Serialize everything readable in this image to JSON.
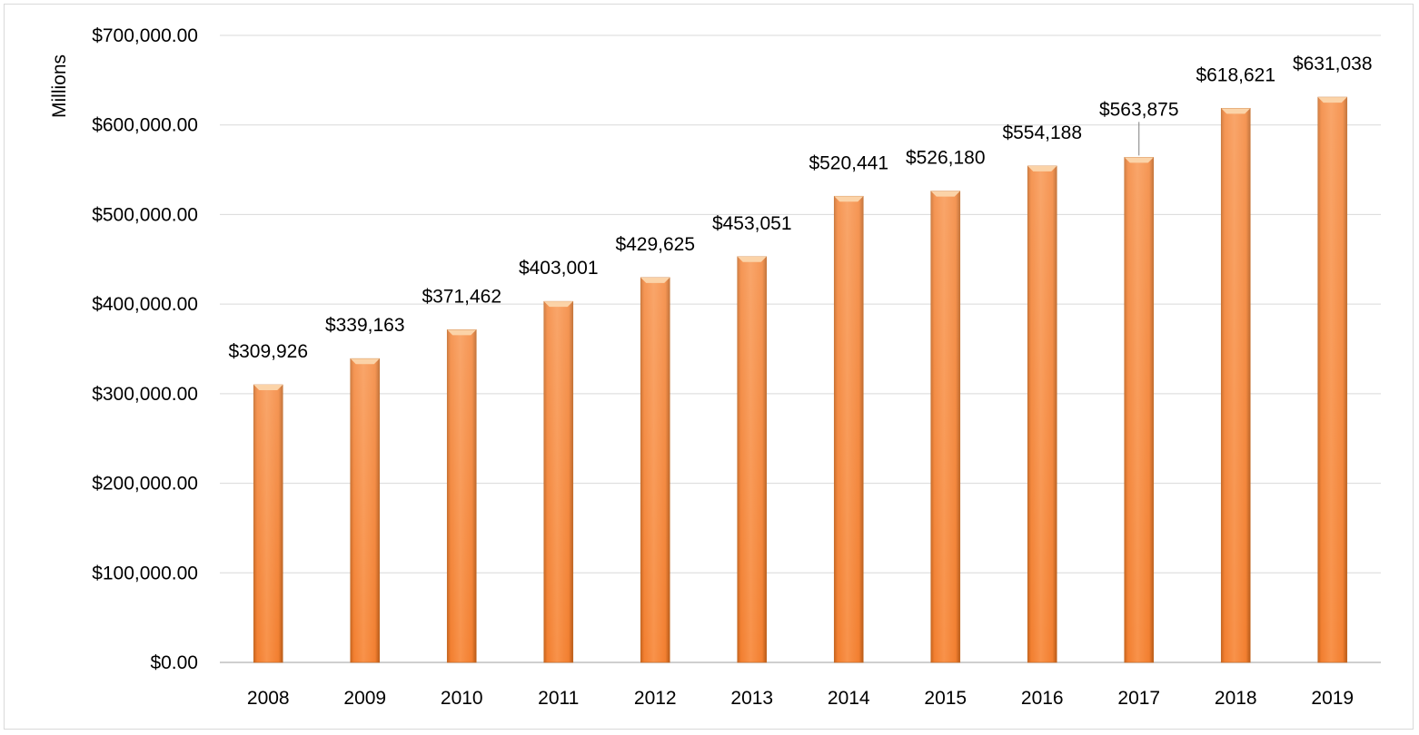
{
  "chart_data": {
    "type": "bar",
    "title": "",
    "xlabel": "",
    "ylabel": "Millions",
    "categories": [
      "2008",
      "2009",
      "2010",
      "2011",
      "2012",
      "2013",
      "2014",
      "2015",
      "2016",
      "2017",
      "2018",
      "2019"
    ],
    "values": [
      309926,
      339163,
      371462,
      403001,
      429625,
      453051,
      520441,
      526180,
      554188,
      563875,
      618621,
      631038
    ],
    "data_labels": [
      "$309,926",
      "$339,163",
      "$371,462",
      "$403,001",
      "$429,625",
      "$453,051",
      "$520,441",
      "$526,180",
      "$554,188",
      "$563,875",
      "$618,621",
      "$631,038"
    ],
    "yticks": [
      0,
      100000,
      200000,
      300000,
      400000,
      500000,
      600000,
      700000
    ],
    "ytick_labels": [
      "$0.00",
      "$100,000.00",
      "$200,000.00",
      "$300,000.00",
      "$400,000.00",
      "$500,000.00",
      "$600,000.00",
      "$700,000.00"
    ],
    "ylim": [
      0,
      700000
    ],
    "grid": true,
    "legend": "none",
    "colors": {
      "bar_light": "#f7a36a",
      "bar_mid": "#f27f30",
      "bar_dark": "#b85a17",
      "bar_cap": "#fbd3a8",
      "grid": "#d9d9d9",
      "axis": "#bfbfbf"
    }
  }
}
